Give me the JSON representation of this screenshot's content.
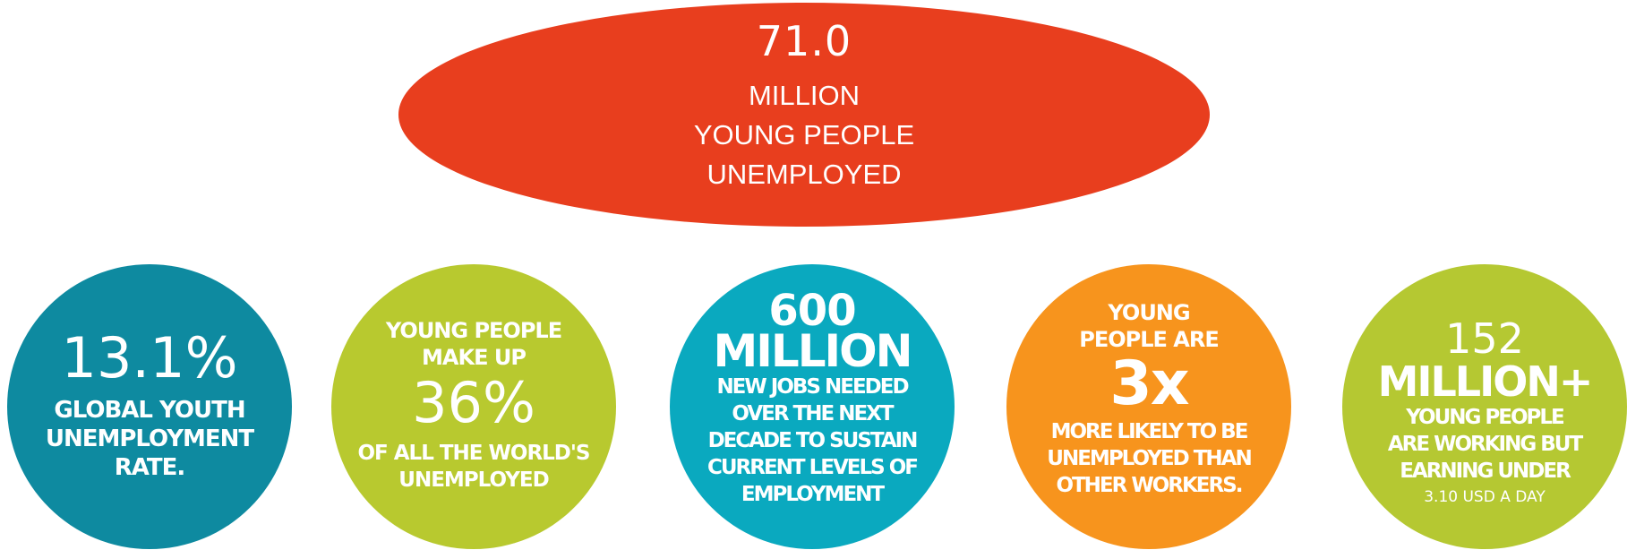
{
  "headline": {
    "number": "71.0",
    "line1": "MILLION",
    "line2": "YOUNG PEOPLE",
    "line3": "UNEMPLOYED"
  },
  "stats": [
    {
      "value": "13.1%",
      "line1": "GLOBAL YOUTH",
      "line2": "UNEMPLOYMENT",
      "line3": "RATE."
    },
    {
      "line1": "YOUNG PEOPLE",
      "line2": "MAKE UP",
      "value": "36%",
      "line3": "OF ALL THE WORLD'S",
      "line4": "UNEMPLOYED"
    },
    {
      "value": "600",
      "unit": "MILLION",
      "line1": "NEW JOBS NEEDED",
      "line2": "OVER THE NEXT",
      "line3": "DECADE TO SUSTAIN",
      "line4": "CURRENT LEVELS OF",
      "line5": "EMPLOYMENT"
    },
    {
      "line1": "YOUNG",
      "line2": "PEOPLE ARE",
      "value": "3x",
      "line3": "MORE LIKELY TO BE",
      "line4": "UNEMPLOYED THAN",
      "line5": "OTHER WORKERS."
    },
    {
      "value": "152",
      "unit": "MILLION+",
      "line1": "YOUNG PEOPLE",
      "line2": "ARE WORKING BUT",
      "line3": "EARNING UNDER",
      "line4": "3.10 USD A DAY"
    }
  ],
  "colors": {
    "headline_red": "#e83e1e",
    "teal_dark": "#0e8aa0",
    "lime": "#b8c92f",
    "teal_bright": "#0aa9bf",
    "orange": "#f7941d"
  }
}
